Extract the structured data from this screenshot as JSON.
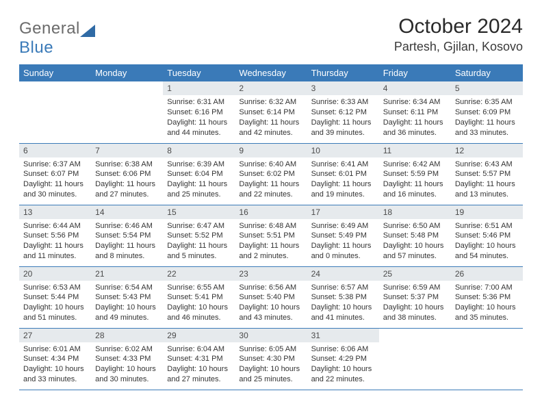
{
  "logo": {
    "text1": "General",
    "text2": "Blue"
  },
  "header": {
    "title": "October 2024",
    "location": "Partesh, Gjilan, Kosovo"
  },
  "colors": {
    "primary": "#3a7ab8",
    "daybar": "#e6eaed",
    "text": "#333333"
  },
  "weekdays": [
    "Sunday",
    "Monday",
    "Tuesday",
    "Wednesday",
    "Thursday",
    "Friday",
    "Saturday"
  ],
  "days": [
    null,
    null,
    {
      "n": "1",
      "sr": "Sunrise: 6:31 AM",
      "ss": "Sunset: 6:16 PM",
      "dl1": "Daylight: 11 hours",
      "dl2": "and 44 minutes."
    },
    {
      "n": "2",
      "sr": "Sunrise: 6:32 AM",
      "ss": "Sunset: 6:14 PM",
      "dl1": "Daylight: 11 hours",
      "dl2": "and 42 minutes."
    },
    {
      "n": "3",
      "sr": "Sunrise: 6:33 AM",
      "ss": "Sunset: 6:12 PM",
      "dl1": "Daylight: 11 hours",
      "dl2": "and 39 minutes."
    },
    {
      "n": "4",
      "sr": "Sunrise: 6:34 AM",
      "ss": "Sunset: 6:11 PM",
      "dl1": "Daylight: 11 hours",
      "dl2": "and 36 minutes."
    },
    {
      "n": "5",
      "sr": "Sunrise: 6:35 AM",
      "ss": "Sunset: 6:09 PM",
      "dl1": "Daylight: 11 hours",
      "dl2": "and 33 minutes."
    },
    {
      "n": "6",
      "sr": "Sunrise: 6:37 AM",
      "ss": "Sunset: 6:07 PM",
      "dl1": "Daylight: 11 hours",
      "dl2": "and 30 minutes."
    },
    {
      "n": "7",
      "sr": "Sunrise: 6:38 AM",
      "ss": "Sunset: 6:06 PM",
      "dl1": "Daylight: 11 hours",
      "dl2": "and 27 minutes."
    },
    {
      "n": "8",
      "sr": "Sunrise: 6:39 AM",
      "ss": "Sunset: 6:04 PM",
      "dl1": "Daylight: 11 hours",
      "dl2": "and 25 minutes."
    },
    {
      "n": "9",
      "sr": "Sunrise: 6:40 AM",
      "ss": "Sunset: 6:02 PM",
      "dl1": "Daylight: 11 hours",
      "dl2": "and 22 minutes."
    },
    {
      "n": "10",
      "sr": "Sunrise: 6:41 AM",
      "ss": "Sunset: 6:01 PM",
      "dl1": "Daylight: 11 hours",
      "dl2": "and 19 minutes."
    },
    {
      "n": "11",
      "sr": "Sunrise: 6:42 AM",
      "ss": "Sunset: 5:59 PM",
      "dl1": "Daylight: 11 hours",
      "dl2": "and 16 minutes."
    },
    {
      "n": "12",
      "sr": "Sunrise: 6:43 AM",
      "ss": "Sunset: 5:57 PM",
      "dl1": "Daylight: 11 hours",
      "dl2": "and 13 minutes."
    },
    {
      "n": "13",
      "sr": "Sunrise: 6:44 AM",
      "ss": "Sunset: 5:56 PM",
      "dl1": "Daylight: 11 hours",
      "dl2": "and 11 minutes."
    },
    {
      "n": "14",
      "sr": "Sunrise: 6:46 AM",
      "ss": "Sunset: 5:54 PM",
      "dl1": "Daylight: 11 hours",
      "dl2": "and 8 minutes."
    },
    {
      "n": "15",
      "sr": "Sunrise: 6:47 AM",
      "ss": "Sunset: 5:52 PM",
      "dl1": "Daylight: 11 hours",
      "dl2": "and 5 minutes."
    },
    {
      "n": "16",
      "sr": "Sunrise: 6:48 AM",
      "ss": "Sunset: 5:51 PM",
      "dl1": "Daylight: 11 hours",
      "dl2": "and 2 minutes."
    },
    {
      "n": "17",
      "sr": "Sunrise: 6:49 AM",
      "ss": "Sunset: 5:49 PM",
      "dl1": "Daylight: 11 hours",
      "dl2": "and 0 minutes."
    },
    {
      "n": "18",
      "sr": "Sunrise: 6:50 AM",
      "ss": "Sunset: 5:48 PM",
      "dl1": "Daylight: 10 hours",
      "dl2": "and 57 minutes."
    },
    {
      "n": "19",
      "sr": "Sunrise: 6:51 AM",
      "ss": "Sunset: 5:46 PM",
      "dl1": "Daylight: 10 hours",
      "dl2": "and 54 minutes."
    },
    {
      "n": "20",
      "sr": "Sunrise: 6:53 AM",
      "ss": "Sunset: 5:44 PM",
      "dl1": "Daylight: 10 hours",
      "dl2": "and 51 minutes."
    },
    {
      "n": "21",
      "sr": "Sunrise: 6:54 AM",
      "ss": "Sunset: 5:43 PM",
      "dl1": "Daylight: 10 hours",
      "dl2": "and 49 minutes."
    },
    {
      "n": "22",
      "sr": "Sunrise: 6:55 AM",
      "ss": "Sunset: 5:41 PM",
      "dl1": "Daylight: 10 hours",
      "dl2": "and 46 minutes."
    },
    {
      "n": "23",
      "sr": "Sunrise: 6:56 AM",
      "ss": "Sunset: 5:40 PM",
      "dl1": "Daylight: 10 hours",
      "dl2": "and 43 minutes."
    },
    {
      "n": "24",
      "sr": "Sunrise: 6:57 AM",
      "ss": "Sunset: 5:38 PM",
      "dl1": "Daylight: 10 hours",
      "dl2": "and 41 minutes."
    },
    {
      "n": "25",
      "sr": "Sunrise: 6:59 AM",
      "ss": "Sunset: 5:37 PM",
      "dl1": "Daylight: 10 hours",
      "dl2": "and 38 minutes."
    },
    {
      "n": "26",
      "sr": "Sunrise: 7:00 AM",
      "ss": "Sunset: 5:36 PM",
      "dl1": "Daylight: 10 hours",
      "dl2": "and 35 minutes."
    },
    {
      "n": "27",
      "sr": "Sunrise: 6:01 AM",
      "ss": "Sunset: 4:34 PM",
      "dl1": "Daylight: 10 hours",
      "dl2": "and 33 minutes."
    },
    {
      "n": "28",
      "sr": "Sunrise: 6:02 AM",
      "ss": "Sunset: 4:33 PM",
      "dl1": "Daylight: 10 hours",
      "dl2": "and 30 minutes."
    },
    {
      "n": "29",
      "sr": "Sunrise: 6:04 AM",
      "ss": "Sunset: 4:31 PM",
      "dl1": "Daylight: 10 hours",
      "dl2": "and 27 minutes."
    },
    {
      "n": "30",
      "sr": "Sunrise: 6:05 AM",
      "ss": "Sunset: 4:30 PM",
      "dl1": "Daylight: 10 hours",
      "dl2": "and 25 minutes."
    },
    {
      "n": "31",
      "sr": "Sunrise: 6:06 AM",
      "ss": "Sunset: 4:29 PM",
      "dl1": "Daylight: 10 hours",
      "dl2": "and 22 minutes."
    },
    null,
    null
  ]
}
